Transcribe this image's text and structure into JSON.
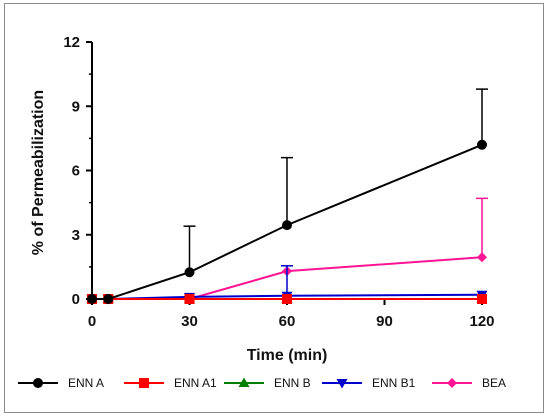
{
  "chart_data": {
    "type": "line",
    "title": "",
    "xlabel": "Time (min)",
    "ylabel": "% of Permeabilization",
    "xlim": [
      0,
      120
    ],
    "ylim": [
      0,
      12
    ],
    "x_ticks": [
      0,
      30,
      60,
      90,
      120
    ],
    "y_ticks": [
      0,
      3,
      6,
      9,
      12
    ],
    "grid": false,
    "legend_position": "bottom",
    "x": [
      0,
      5,
      30,
      60,
      120
    ],
    "series": [
      {
        "name": "ENN A",
        "color": "#000000",
        "marker": "circle",
        "values": [
          0,
          0,
          1.25,
          3.45,
          7.2
        ],
        "error": [
          0,
          0,
          2.15,
          3.15,
          2.6
        ]
      },
      {
        "name": "ENN A1",
        "color": "#ff0000",
        "marker": "square",
        "values": [
          0,
          0,
          0,
          0,
          0
        ],
        "error": [
          0,
          0,
          0,
          0,
          0
        ]
      },
      {
        "name": "ENN B",
        "color": "#008000",
        "marker": "triangle-up",
        "values": [
          0,
          0,
          0,
          0,
          0
        ],
        "error": [
          0,
          0,
          0,
          0,
          0
        ]
      },
      {
        "name": "ENN B1",
        "color": "#0000cc",
        "marker": "triangle-down",
        "values": [
          0,
          0,
          0.1,
          0.15,
          0.2
        ],
        "error": [
          0,
          0,
          0,
          1.4,
          0
        ]
      },
      {
        "name": "BEA",
        "color": "#ff1493",
        "marker": "diamond",
        "values": [
          0,
          0,
          0,
          1.3,
          1.95
        ],
        "error": [
          0,
          0,
          0,
          0,
          2.75
        ]
      }
    ]
  }
}
